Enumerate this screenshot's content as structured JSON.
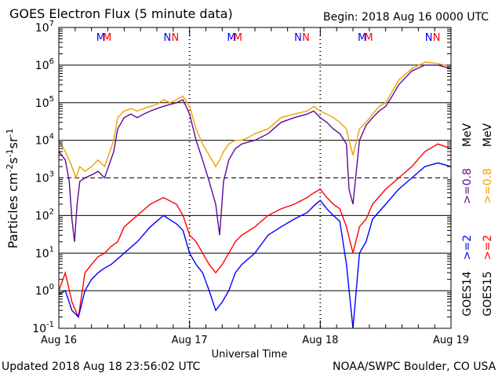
{
  "header": {
    "title": "GOES Electron Flux (5 minute data)",
    "begin": "Begin: 2018 Aug 16 0000 UTC"
  },
  "footer": {
    "updated": "Updated 2018 Aug 18 23:56:02 UTC",
    "credit": "NOAA/SWPC Boulder, CO USA"
  },
  "colors": {
    "goes14_2mev": "#0000ff",
    "goes15_2mev": "#ff0000",
    "goes14_08mev": "#5a0a96",
    "goes15_08mev": "#f0a000",
    "threshold": "#000000"
  },
  "chart_data": {
    "type": "line",
    "title": "GOES Electron Flux (5 minute data)",
    "xlabel": "Universal Time",
    "ylabel": "Particles cm^-2 s^-1 sr^-1",
    "yscale": "log",
    "ylim": [
      0.1,
      10000000
    ],
    "xlim": [
      "2018-08-16 00:00",
      "2018-08-19 00:00"
    ],
    "x_ticks": [
      "Aug 16",
      "Aug 17",
      "Aug 18",
      "Aug 19"
    ],
    "y_ticks": [
      {
        "base": "10",
        "exp": "-1",
        "value": 0.1
      },
      {
        "base": "10",
        "exp": "0",
        "value": 1
      },
      {
        "base": "10",
        "exp": "1",
        "value": 10
      },
      {
        "base": "10",
        "exp": "2",
        "value": 100
      },
      {
        "base": "10",
        "exp": "3",
        "value": 1000
      },
      {
        "base": "10",
        "exp": "4",
        "value": 10000
      },
      {
        "base": "10",
        "exp": "5",
        "value": 100000
      },
      {
        "base": "10",
        "exp": "6",
        "value": 1000000
      },
      {
        "base": "10",
        "exp": "7",
        "value": 10000000
      }
    ],
    "grid": true,
    "threshold": {
      "value": 1000,
      "style": "dashed"
    },
    "legend_position": "right",
    "legend": [
      {
        "label": ">=2",
        "color": "#0000ff"
      },
      {
        "label": ">=2",
        "color": "#ff0000"
      },
      {
        "label": ">=0.8",
        "color": "#5a0a96"
      },
      {
        "label": ">=0.8",
        "color": "#f0a000"
      }
    ],
    "legend_unit": "MeV",
    "legend_satellites": [
      "GOES14",
      "GOES15"
    ],
    "markers": [
      {
        "day": 0.32,
        "label": "M",
        "color": "#0000ff"
      },
      {
        "day": 0.37,
        "label": "M",
        "color": "#ff0000"
      },
      {
        "day": 0.83,
        "label": "N",
        "color": "#0000ff"
      },
      {
        "day": 0.89,
        "label": "N",
        "color": "#ff0000"
      },
      {
        "day": 1.32,
        "label": "M",
        "color": "#0000ff"
      },
      {
        "day": 1.37,
        "label": "M",
        "color": "#ff0000"
      },
      {
        "day": 1.83,
        "label": "N",
        "color": "#0000ff"
      },
      {
        "day": 1.89,
        "label": "N",
        "color": "#ff0000"
      },
      {
        "day": 2.32,
        "label": "M",
        "color": "#0000ff"
      },
      {
        "day": 2.37,
        "label": "M",
        "color": "#ff0000"
      },
      {
        "day": 2.83,
        "label": "N",
        "color": "#0000ff"
      },
      {
        "day": 2.89,
        "label": "N",
        "color": "#ff0000"
      }
    ],
    "series": [
      {
        "satellite": "GOES15",
        "energy": ">=0.8 MeV",
        "color": "#f0a000",
        "x": [
          0.0,
          0.05,
          0.1,
          0.13,
          0.16,
          0.2,
          0.25,
          0.3,
          0.35,
          0.42,
          0.45,
          0.5,
          0.55,
          0.6,
          0.65,
          0.7,
          0.75,
          0.8,
          0.85,
          0.9,
          0.95,
          1.0,
          1.05,
          1.1,
          1.15,
          1.2,
          1.23,
          1.26,
          1.3,
          1.35,
          1.4,
          1.45,
          1.5,
          1.6,
          1.7,
          1.8,
          1.9,
          1.95,
          2.0,
          2.05,
          2.1,
          2.15,
          2.2,
          2.22,
          2.25,
          2.3,
          2.35,
          2.4,
          2.45,
          2.5,
          2.55,
          2.6,
          2.7,
          2.8,
          2.9,
          3.0
        ],
        "y": [
          10000,
          5000,
          2000,
          1000,
          2000,
          1500,
          2000,
          3000,
          2000,
          10000,
          40000,
          60000,
          70000,
          60000,
          70000,
          80000,
          90000,
          120000,
          100000,
          120000,
          150000,
          80000,
          20000,
          8000,
          4000,
          2000,
          3000,
          5000,
          8000,
          10000,
          10000,
          12000,
          15000,
          20000,
          40000,
          50000,
          60000,
          80000,
          60000,
          50000,
          40000,
          30000,
          20000,
          10000,
          4000,
          20000,
          30000,
          50000,
          80000,
          100000,
          200000,
          400000,
          800000,
          1200000,
          1100000,
          900000
        ]
      },
      {
        "satellite": "GOES14",
        "energy": ">=0.8 MeV",
        "color": "#5a0a96",
        "x": [
          0.0,
          0.05,
          0.08,
          0.1,
          0.12,
          0.14,
          0.16,
          0.2,
          0.25,
          0.3,
          0.35,
          0.42,
          0.45,
          0.5,
          0.55,
          0.6,
          0.65,
          0.7,
          0.75,
          0.8,
          0.85,
          0.9,
          0.95,
          1.0,
          1.05,
          1.1,
          1.15,
          1.2,
          1.23,
          1.26,
          1.3,
          1.35,
          1.4,
          1.45,
          1.5,
          1.6,
          1.7,
          1.8,
          1.9,
          1.95,
          2.0,
          2.05,
          2.1,
          2.15,
          2.2,
          2.22,
          2.25,
          2.3,
          2.35,
          2.4,
          2.45,
          2.5,
          2.55,
          2.6,
          2.7,
          2.8,
          2.9,
          3.0
        ],
        "y": [
          5000,
          3000,
          800,
          80,
          20,
          200,
          800,
          1000,
          1200,
          1500,
          1000,
          5000,
          20000,
          40000,
          50000,
          40000,
          50000,
          60000,
          70000,
          80000,
          90000,
          100000,
          120000,
          50000,
          10000,
          3000,
          800,
          200,
          30,
          800,
          3000,
          6000,
          8000,
          9000,
          10000,
          15000,
          30000,
          40000,
          50000,
          60000,
          40000,
          30000,
          20000,
          15000,
          8000,
          500,
          200,
          10000,
          25000,
          40000,
          60000,
          80000,
          150000,
          300000,
          700000,
          1000000,
          1000000,
          800000
        ]
      },
      {
        "satellite": "GOES15",
        "energy": ">=2 MeV",
        "color": "#ff0000",
        "x": [
          0.0,
          0.05,
          0.1,
          0.15,
          0.2,
          0.25,
          0.3,
          0.35,
          0.4,
          0.45,
          0.5,
          0.6,
          0.7,
          0.8,
          0.9,
          0.95,
          1.0,
          1.05,
          1.1,
          1.15,
          1.2,
          1.25,
          1.3,
          1.35,
          1.4,
          1.5,
          1.6,
          1.7,
          1.8,
          1.9,
          1.95,
          2.0,
          2.05,
          2.1,
          2.15,
          2.2,
          2.25,
          2.3,
          2.35,
          2.4,
          2.5,
          2.6,
          2.7,
          2.8,
          2.9,
          3.0
        ],
        "y": [
          1,
          3,
          0.5,
          0.2,
          3,
          5,
          8,
          10,
          15,
          20,
          50,
          100,
          200,
          300,
          200,
          100,
          30,
          20,
          10,
          5,
          3,
          5,
          10,
          20,
          30,
          50,
          100,
          150,
          200,
          300,
          400,
          500,
          300,
          200,
          150,
          50,
          10,
          50,
          80,
          200,
          500,
          1000,
          2000,
          5000,
          8000,
          6000
        ]
      },
      {
        "satellite": "GOES14",
        "energy": ">=2 MeV",
        "color": "#0000ff",
        "x": [
          0.0,
          0.05,
          0.1,
          0.15,
          0.2,
          0.25,
          0.3,
          0.35,
          0.4,
          0.45,
          0.5,
          0.6,
          0.7,
          0.8,
          0.9,
          0.95,
          1.0,
          1.05,
          1.1,
          1.15,
          1.2,
          1.25,
          1.3,
          1.35,
          1.4,
          1.5,
          1.6,
          1.7,
          1.8,
          1.9,
          1.95,
          2.0,
          2.05,
          2.1,
          2.15,
          2.2,
          2.25,
          2.3,
          2.35,
          2.4,
          2.5,
          2.6,
          2.7,
          2.8,
          2.9,
          3.0
        ],
        "y": [
          0.8,
          1,
          0.3,
          0.2,
          1,
          2,
          3,
          4,
          5,
          7,
          10,
          20,
          50,
          100,
          60,
          40,
          10,
          5,
          3,
          1,
          0.3,
          0.5,
          1,
          3,
          5,
          10,
          30,
          50,
          80,
          120,
          180,
          250,
          150,
          100,
          70,
          5,
          0.1,
          10,
          20,
          80,
          200,
          500,
          1000,
          2000,
          2500,
          2000
        ]
      }
    ]
  }
}
